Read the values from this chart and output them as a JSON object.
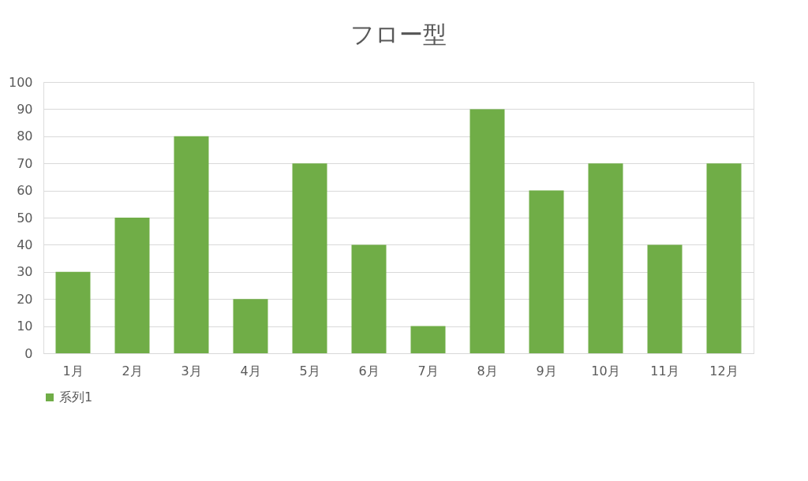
{
  "chart_data": {
    "type": "bar",
    "title": "フロー型",
    "categories": [
      "1月",
      "2月",
      "3月",
      "4月",
      "5月",
      "6月",
      "7月",
      "8月",
      "9月",
      "10月",
      "11月",
      "12月"
    ],
    "series": [
      {
        "name": "系列1",
        "color": "#70ad47",
        "values": [
          30,
          50,
          80,
          20,
          70,
          40,
          10,
          90,
          60,
          70,
          40,
          70
        ]
      }
    ],
    "ylim": [
      0,
      100
    ],
    "yticks": [
      0,
      10,
      20,
      30,
      40,
      50,
      60,
      70,
      80,
      90,
      100
    ],
    "grid": "y",
    "legend": "bottom"
  }
}
